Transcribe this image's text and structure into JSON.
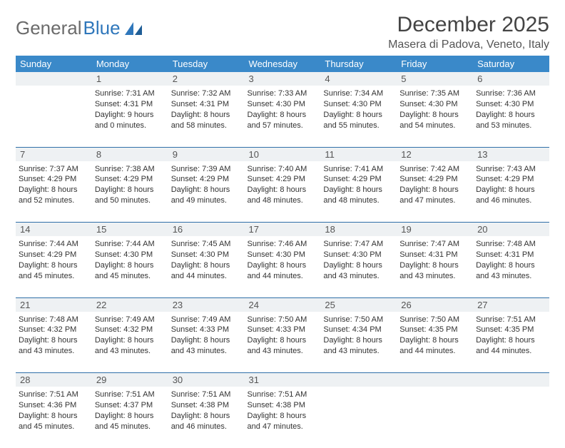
{
  "brand": {
    "word1": "General",
    "word2": "Blue"
  },
  "title": "December 2025",
  "location": "Masera di Padova, Veneto, Italy",
  "colors": {
    "header_bg": "#3a89c9",
    "header_fg": "#ffffff",
    "daynum_bg": "#eef1f3",
    "rule": "#2f6fa8",
    "brand_gray": "#6b6b6b",
    "brand_blue": "#2f77bb"
  },
  "weekdays": [
    "Sunday",
    "Monday",
    "Tuesday",
    "Wednesday",
    "Thursday",
    "Friday",
    "Saturday"
  ],
  "weeks": [
    {
      "nums": [
        "",
        "1",
        "2",
        "3",
        "4",
        "5",
        "6"
      ],
      "cells": [
        "",
        "Sunrise: 7:31 AM\nSunset: 4:31 PM\nDaylight: 9 hours and 0 minutes.",
        "Sunrise: 7:32 AM\nSunset: 4:31 PM\nDaylight: 8 hours and 58 minutes.",
        "Sunrise: 7:33 AM\nSunset: 4:30 PM\nDaylight: 8 hours and 57 minutes.",
        "Sunrise: 7:34 AM\nSunset: 4:30 PM\nDaylight: 8 hours and 55 minutes.",
        "Sunrise: 7:35 AM\nSunset: 4:30 PM\nDaylight: 8 hours and 54 minutes.",
        "Sunrise: 7:36 AM\nSunset: 4:30 PM\nDaylight: 8 hours and 53 minutes."
      ]
    },
    {
      "nums": [
        "7",
        "8",
        "9",
        "10",
        "11",
        "12",
        "13"
      ],
      "cells": [
        "Sunrise: 7:37 AM\nSunset: 4:29 PM\nDaylight: 8 hours and 52 minutes.",
        "Sunrise: 7:38 AM\nSunset: 4:29 PM\nDaylight: 8 hours and 50 minutes.",
        "Sunrise: 7:39 AM\nSunset: 4:29 PM\nDaylight: 8 hours and 49 minutes.",
        "Sunrise: 7:40 AM\nSunset: 4:29 PM\nDaylight: 8 hours and 48 minutes.",
        "Sunrise: 7:41 AM\nSunset: 4:29 PM\nDaylight: 8 hours and 48 minutes.",
        "Sunrise: 7:42 AM\nSunset: 4:29 PM\nDaylight: 8 hours and 47 minutes.",
        "Sunrise: 7:43 AM\nSunset: 4:29 PM\nDaylight: 8 hours and 46 minutes."
      ]
    },
    {
      "nums": [
        "14",
        "15",
        "16",
        "17",
        "18",
        "19",
        "20"
      ],
      "cells": [
        "Sunrise: 7:44 AM\nSunset: 4:29 PM\nDaylight: 8 hours and 45 minutes.",
        "Sunrise: 7:44 AM\nSunset: 4:30 PM\nDaylight: 8 hours and 45 minutes.",
        "Sunrise: 7:45 AM\nSunset: 4:30 PM\nDaylight: 8 hours and 44 minutes.",
        "Sunrise: 7:46 AM\nSunset: 4:30 PM\nDaylight: 8 hours and 44 minutes.",
        "Sunrise: 7:47 AM\nSunset: 4:30 PM\nDaylight: 8 hours and 43 minutes.",
        "Sunrise: 7:47 AM\nSunset: 4:31 PM\nDaylight: 8 hours and 43 minutes.",
        "Sunrise: 7:48 AM\nSunset: 4:31 PM\nDaylight: 8 hours and 43 minutes."
      ]
    },
    {
      "nums": [
        "21",
        "22",
        "23",
        "24",
        "25",
        "26",
        "27"
      ],
      "cells": [
        "Sunrise: 7:48 AM\nSunset: 4:32 PM\nDaylight: 8 hours and 43 minutes.",
        "Sunrise: 7:49 AM\nSunset: 4:32 PM\nDaylight: 8 hours and 43 minutes.",
        "Sunrise: 7:49 AM\nSunset: 4:33 PM\nDaylight: 8 hours and 43 minutes.",
        "Sunrise: 7:50 AM\nSunset: 4:33 PM\nDaylight: 8 hours and 43 minutes.",
        "Sunrise: 7:50 AM\nSunset: 4:34 PM\nDaylight: 8 hours and 43 minutes.",
        "Sunrise: 7:50 AM\nSunset: 4:35 PM\nDaylight: 8 hours and 44 minutes.",
        "Sunrise: 7:51 AM\nSunset: 4:35 PM\nDaylight: 8 hours and 44 minutes."
      ]
    },
    {
      "nums": [
        "28",
        "29",
        "30",
        "31",
        "",
        "",
        ""
      ],
      "cells": [
        "Sunrise: 7:51 AM\nSunset: 4:36 PM\nDaylight: 8 hours and 45 minutes.",
        "Sunrise: 7:51 AM\nSunset: 4:37 PM\nDaylight: 8 hours and 45 minutes.",
        "Sunrise: 7:51 AM\nSunset: 4:38 PM\nDaylight: 8 hours and 46 minutes.",
        "Sunrise: 7:51 AM\nSunset: 4:38 PM\nDaylight: 8 hours and 47 minutes.",
        "",
        "",
        ""
      ]
    }
  ]
}
